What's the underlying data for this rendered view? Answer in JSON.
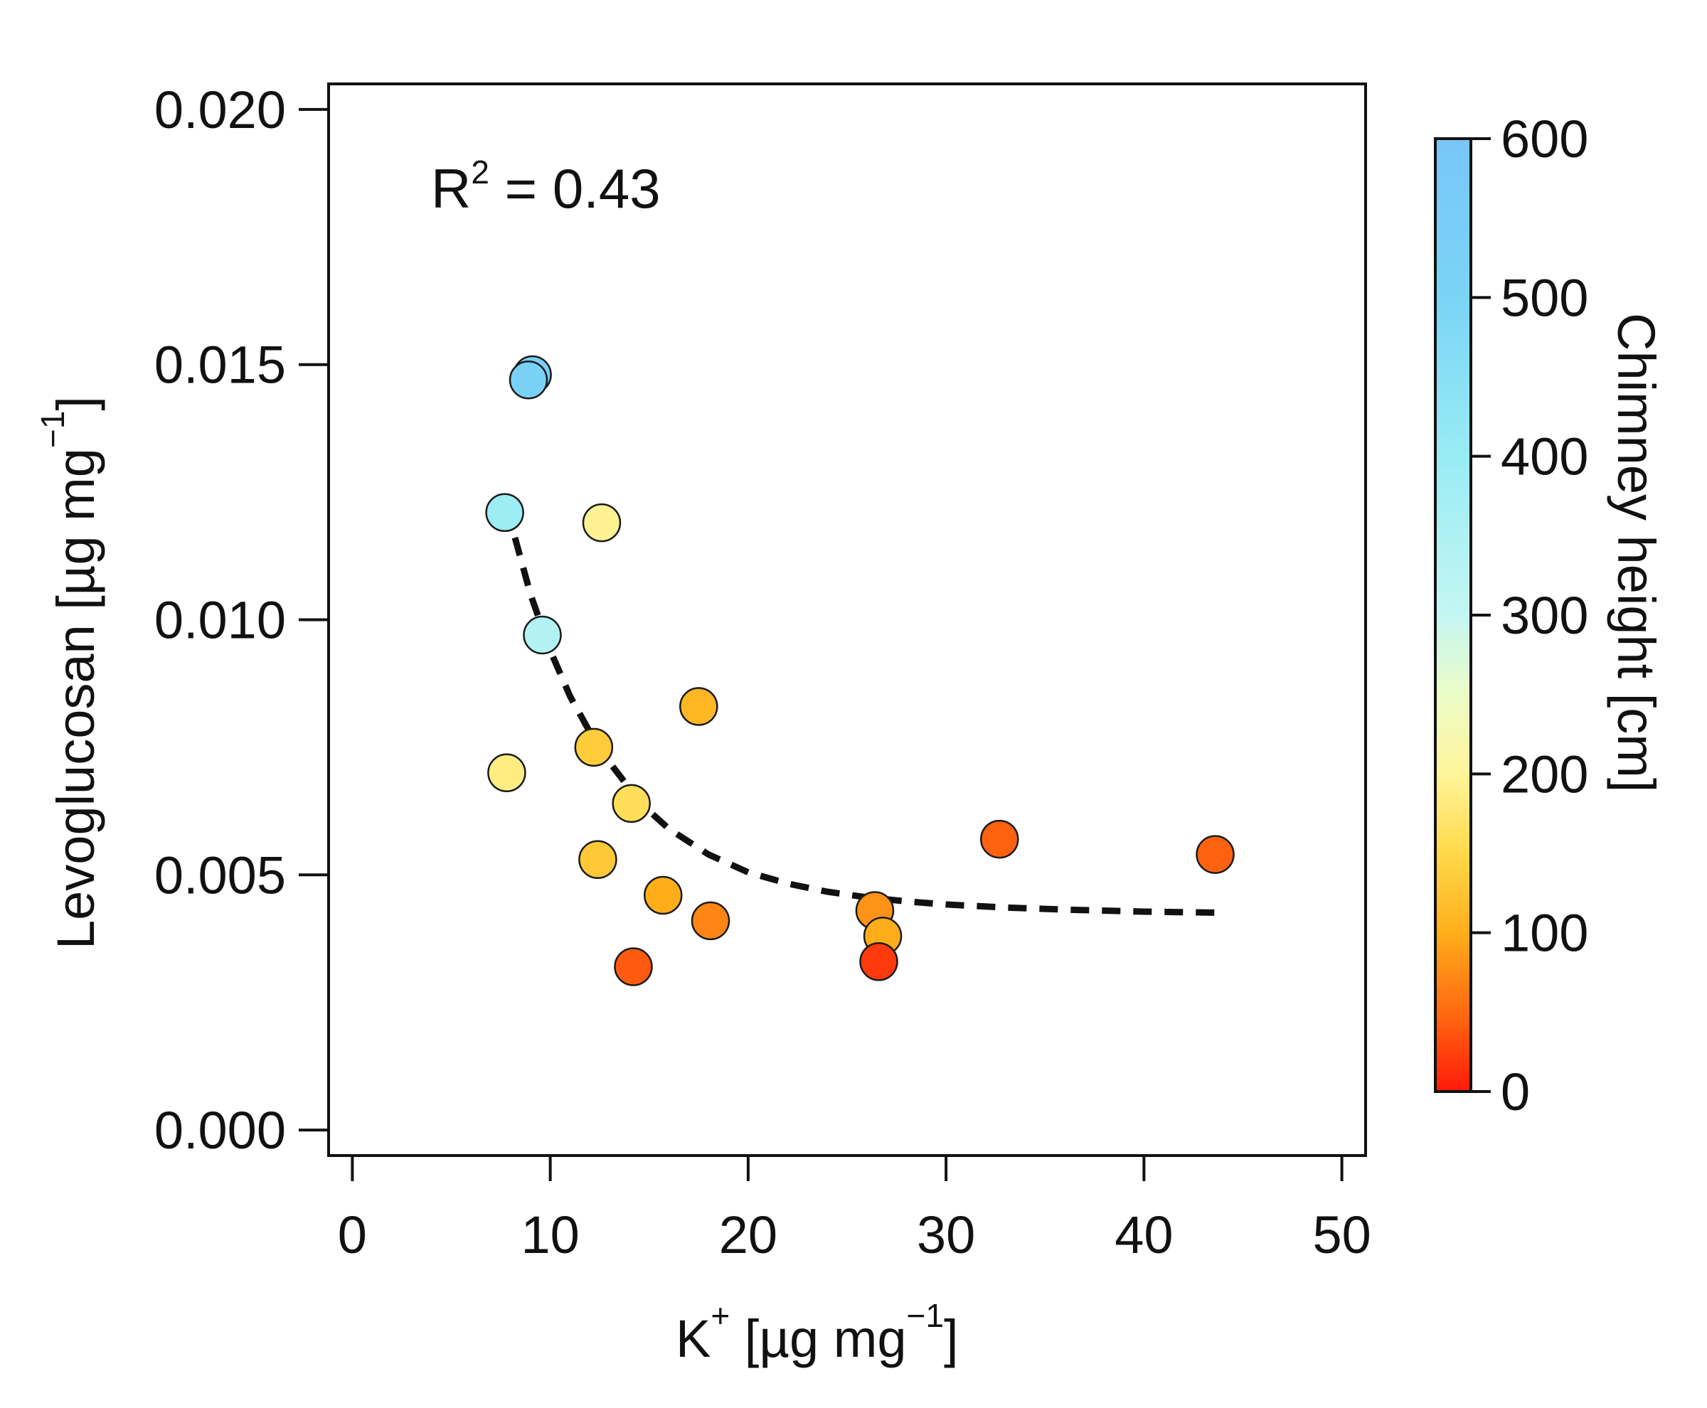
{
  "chart_data": {
    "type": "scatter",
    "xlabel": {
      "main": "K",
      "sup": "+",
      "unit_prefix": " [µg mg",
      "unit_sup": "−1",
      "unit_suffix": "]"
    },
    "ylabel": {
      "main": "Levoglucosan [µg mg",
      "unit_sup": "−1",
      "unit_suffix": "]"
    },
    "xlim": [
      -1.2,
      51.2
    ],
    "ylim": [
      -0.0005,
      0.0205
    ],
    "x_ticks": [
      0,
      10,
      20,
      30,
      40,
      50
    ],
    "x_tick_labels": [
      "0",
      "10",
      "20",
      "30",
      "40",
      "50"
    ],
    "y_ticks": [
      0.0,
      0.005,
      0.01,
      0.015,
      0.02
    ],
    "y_tick_labels": [
      "0.000",
      "0.005",
      "0.010",
      "0.015",
      "0.020"
    ],
    "annotation": {
      "prefix": "R",
      "sup": "2",
      "suffix": " = 0.43"
    },
    "points": [
      {
        "x": 9.1,
        "y": 0.0148,
        "c": 540
      },
      {
        "x": 8.9,
        "y": 0.0147,
        "c": 520
      },
      {
        "x": 7.7,
        "y": 0.0121,
        "c": 390
      },
      {
        "x": 12.6,
        "y": 0.0119,
        "c": 195
      },
      {
        "x": 9.6,
        "y": 0.0097,
        "c": 340
      },
      {
        "x": 17.5,
        "y": 0.0083,
        "c": 110
      },
      {
        "x": 12.2,
        "y": 0.0075,
        "c": 135
      },
      {
        "x": 7.8,
        "y": 0.007,
        "c": 185
      },
      {
        "x": 14.1,
        "y": 0.0064,
        "c": 160
      },
      {
        "x": 12.4,
        "y": 0.0053,
        "c": 130
      },
      {
        "x": 15.7,
        "y": 0.0046,
        "c": 100
      },
      {
        "x": 18.1,
        "y": 0.0041,
        "c": 70
      },
      {
        "x": 14.2,
        "y": 0.0032,
        "c": 40
      },
      {
        "x": 32.7,
        "y": 0.0057,
        "c": 45
      },
      {
        "x": 43.6,
        "y": 0.0054,
        "c": 45
      },
      {
        "x": 26.4,
        "y": 0.0043,
        "c": 80
      },
      {
        "x": 26.8,
        "y": 0.0038,
        "c": 100
      },
      {
        "x": 26.6,
        "y": 0.0033,
        "c": 20
      }
    ],
    "fit": {
      "label": "exponential fit",
      "style": "dashed",
      "x": [
        7.8,
        9,
        10,
        11,
        12,
        13,
        14,
        15,
        16,
        18,
        20,
        22,
        24,
        26,
        28,
        30,
        33,
        36,
        40,
        43.6
      ],
      "y": [
        0.0122,
        0.0105,
        0.0094,
        0.0085,
        0.0078,
        0.0072,
        0.0067,
        0.00625,
        0.0059,
        0.0054,
        0.00505,
        0.00483,
        0.00467,
        0.00456,
        0.00448,
        0.00442,
        0.00436,
        0.00432,
        0.00428,
        0.00426
      ]
    },
    "colorbar": {
      "label": "Chimney height  [cm]",
      "min": 0,
      "max": 600,
      "ticks": [
        0,
        100,
        200,
        300,
        400,
        500,
        600
      ],
      "tick_labels": [
        "0",
        "100",
        "200",
        "300",
        "400",
        "500",
        "600"
      ],
      "stops": [
        {
          "v": 0,
          "color": "#ff1a0a"
        },
        {
          "v": 50,
          "color": "#ff6a10"
        },
        {
          "v": 100,
          "color": "#ffae1a"
        },
        {
          "v": 150,
          "color": "#ffd94a"
        },
        {
          "v": 200,
          "color": "#fff59a"
        },
        {
          "v": 250,
          "color": "#ecfcc8"
        },
        {
          "v": 300,
          "color": "#c4f6f2"
        },
        {
          "v": 400,
          "color": "#98ecf4"
        },
        {
          "v": 500,
          "color": "#7ad4f6"
        },
        {
          "v": 600,
          "color": "#78c6f8"
        }
      ]
    }
  }
}
